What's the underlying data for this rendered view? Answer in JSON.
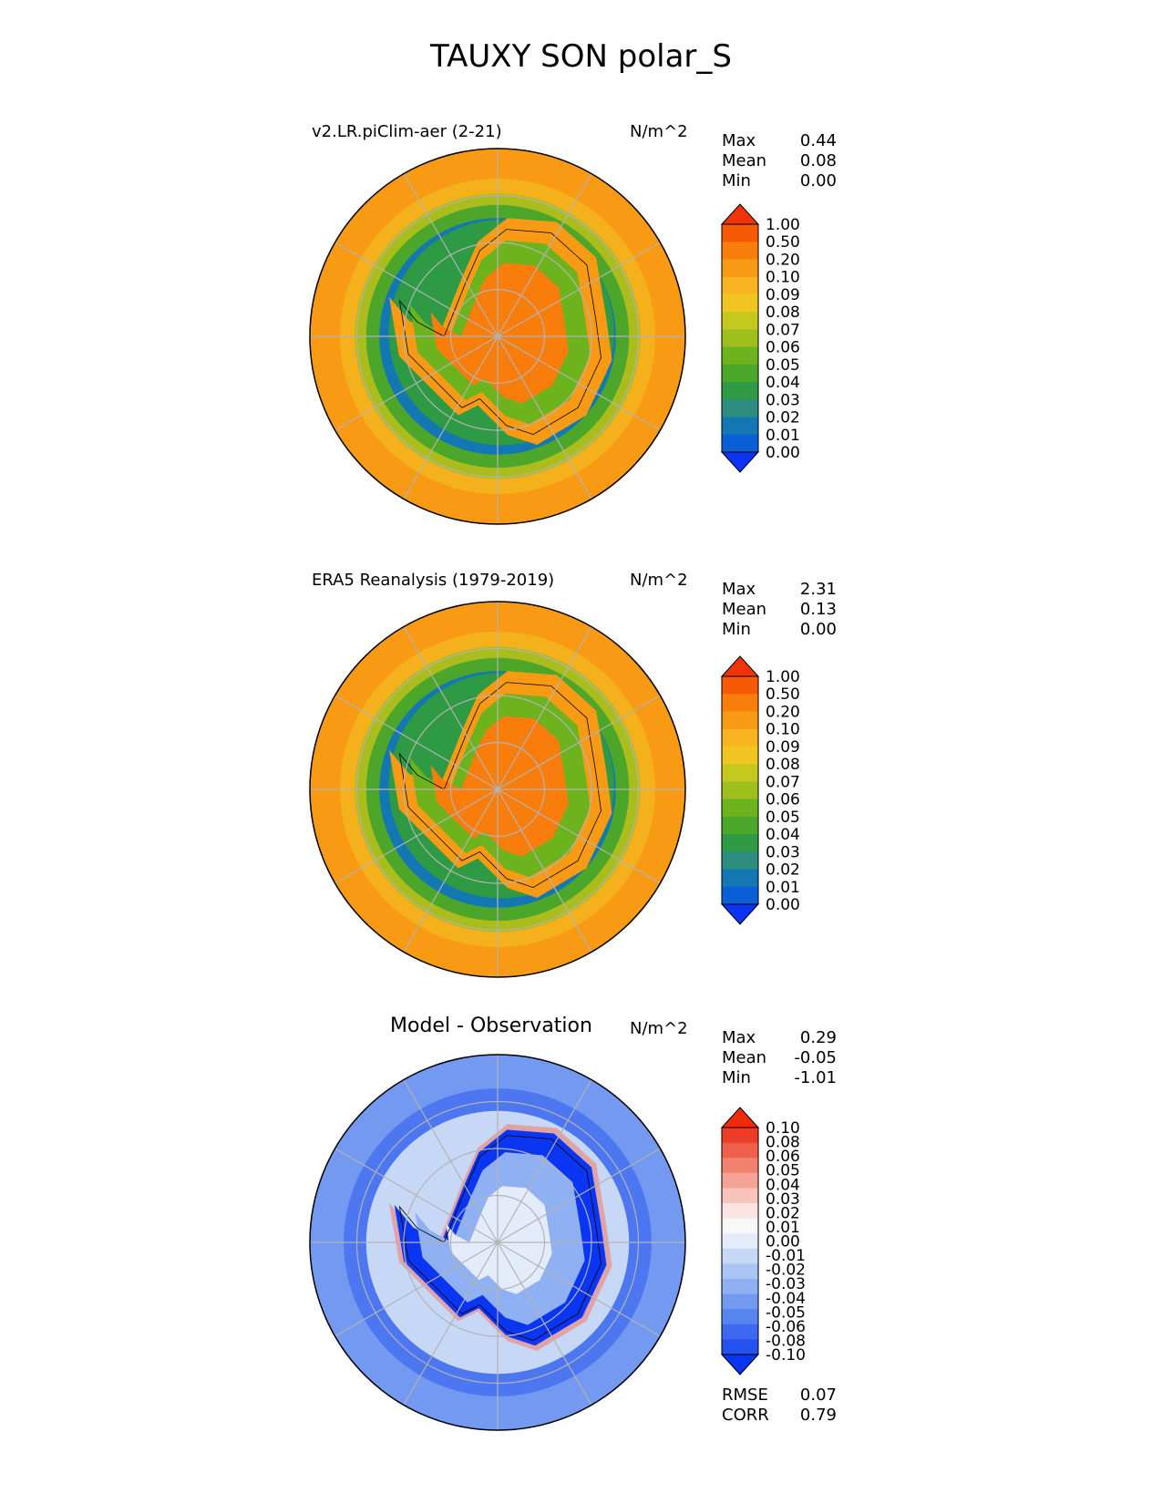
{
  "title": "TAUXY SON polar_S",
  "colors": {
    "seq": [
      "#0b33f5",
      "#0b5fd6",
      "#1377b3",
      "#2c8c80",
      "#2f9a44",
      "#4ca629",
      "#6cb31e",
      "#9ebf1c",
      "#c6c81e",
      "#f0c522",
      "#f8b521",
      "#f99a14",
      "#f97d0b",
      "#f65a05",
      "#f23207"
    ],
    "div": [
      "#0a35f2",
      "#2452f0",
      "#3d68ef",
      "#5884ef",
      "#7499f0",
      "#8fb0f2",
      "#aac4f4",
      "#c7d8f7",
      "#e4ecfb",
      "#f8f8f8",
      "#fbe4e1",
      "#f8c4bb",
      "#f5a395",
      "#f28270",
      "#ef604c",
      "#ed3d27",
      "#f22a08"
    ]
  },
  "panels": [
    {
      "title": "v2.LR.piClim-aer (2-21)",
      "units": "N/m^2",
      "stats": [
        {
          "label": "Max",
          "value": "0.44"
        },
        {
          "label": "Mean",
          "value": "0.08"
        },
        {
          "label": "Min",
          "value": "0.00"
        }
      ],
      "colorbar": [
        "1.00",
        "0.50",
        "0.20",
        "0.10",
        "0.09",
        "0.08",
        "0.07",
        "0.06",
        "0.05",
        "0.04",
        "0.03",
        "0.02",
        "0.01",
        "0.00"
      ]
    },
    {
      "title": "ERA5 Reanalysis (1979-2019)",
      "units": "N/m^2",
      "stats": [
        {
          "label": "Max",
          "value": "2.31"
        },
        {
          "label": "Mean",
          "value": "0.13"
        },
        {
          "label": "Min",
          "value": "0.00"
        }
      ],
      "colorbar": [
        "1.00",
        "0.50",
        "0.20",
        "0.10",
        "0.09",
        "0.08",
        "0.07",
        "0.06",
        "0.05",
        "0.04",
        "0.03",
        "0.02",
        "0.01",
        "0.00"
      ]
    },
    {
      "title": "Model - Observation",
      "units": "N/m^2",
      "stats": [
        {
          "label": "Max",
          "value": "0.29"
        },
        {
          "label": "Mean",
          "value": "-0.05"
        },
        {
          "label": "Min",
          "value": "-1.01"
        }
      ],
      "colorbar": [
        "0.10",
        "0.08",
        "0.06",
        "0.05",
        "0.04",
        "0.03",
        "0.02",
        "0.01",
        "0.00",
        "-0.01",
        "-0.02",
        "-0.03",
        "-0.04",
        "-0.05",
        "-0.06",
        "-0.08",
        "-0.10"
      ],
      "extra_stats": [
        {
          "label": "RMSE",
          "value": "0.07"
        },
        {
          "label": "CORR",
          "value": "0.79"
        }
      ]
    }
  ],
  "chart_data": [
    {
      "type": "heatmap",
      "title": "v2.LR.piClim-aer (2-21)",
      "units": "N/m^2",
      "projection": "south polar stereographic",
      "colorbar_levels": [
        0.0,
        0.01,
        0.02,
        0.03,
        0.04,
        0.05,
        0.06,
        0.07,
        0.08,
        0.09,
        0.1,
        0.2,
        0.5,
        1.0
      ],
      "stats": {
        "max": 0.44,
        "mean": 0.08,
        "min": 0.0
      }
    },
    {
      "type": "heatmap",
      "title": "ERA5 Reanalysis (1979-2019)",
      "units": "N/m^2",
      "projection": "south polar stereographic",
      "colorbar_levels": [
        0.0,
        0.01,
        0.02,
        0.03,
        0.04,
        0.05,
        0.06,
        0.07,
        0.08,
        0.09,
        0.1,
        0.2,
        0.5,
        1.0
      ],
      "stats": {
        "max": 2.31,
        "mean": 0.13,
        "min": 0.0
      }
    },
    {
      "type": "heatmap",
      "title": "Model - Observation",
      "units": "N/m^2",
      "projection": "south polar stereographic",
      "colorbar_levels": [
        -0.1,
        -0.08,
        -0.06,
        -0.05,
        -0.04,
        -0.03,
        -0.02,
        -0.01,
        0.0,
        0.01,
        0.02,
        0.03,
        0.04,
        0.05,
        0.06,
        0.08,
        0.1
      ],
      "stats": {
        "max": 0.29,
        "mean": -0.05,
        "min": -1.01,
        "rmse": 0.07,
        "corr": 0.79
      }
    }
  ]
}
